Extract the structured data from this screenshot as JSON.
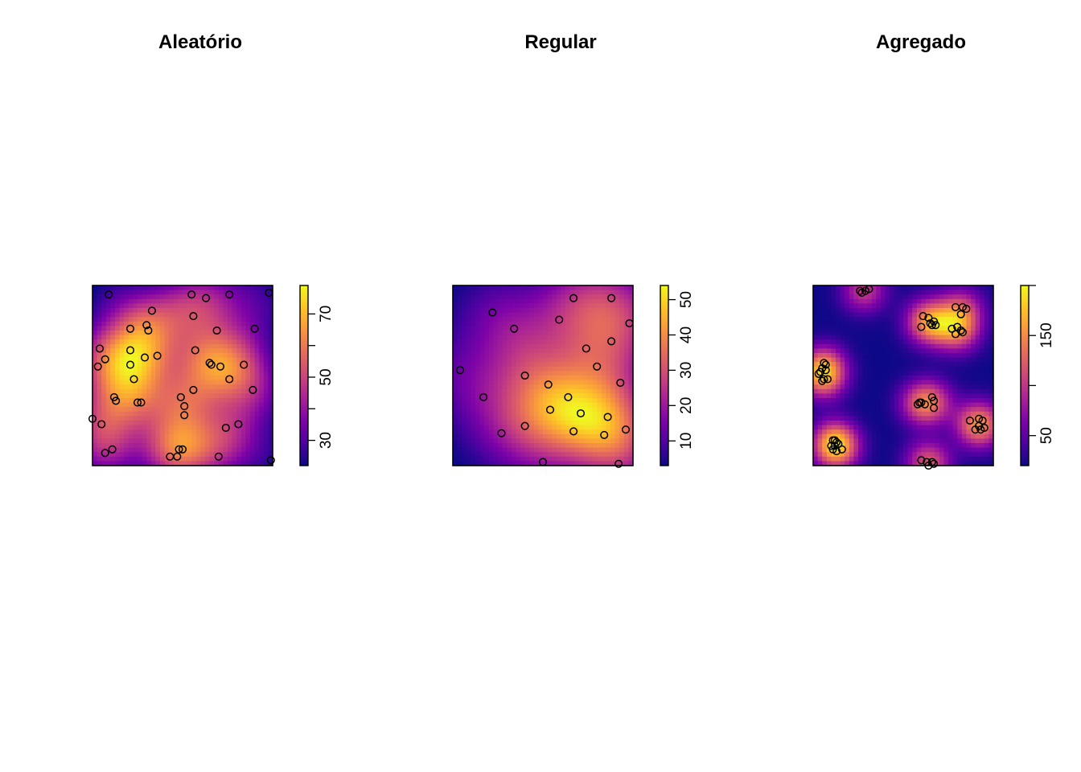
{
  "colors": {
    "background": "#ffffff",
    "ramp": [
      "#0d0887",
      "#4c02a1",
      "#7e03a8",
      "#a92395",
      "#cc4778",
      "#e56b5d",
      "#f89540",
      "#fdc328",
      "#f0f921"
    ],
    "points": "#000000"
  },
  "chart_data": [
    {
      "type": "heatmap",
      "title": "Aleatório",
      "legend": {
        "placement": "right",
        "range": [
          22,
          79
        ],
        "ticks": [
          "30",
          "50",
          "70"
        ],
        "tick_values": [
          30,
          50,
          70
        ],
        "minor_ticks": [
          40,
          60
        ]
      },
      "points": [
        [
          0.09,
          0.95
        ],
        [
          0.55,
          0.95
        ],
        [
          0.63,
          0.93
        ],
        [
          0.76,
          0.95
        ],
        [
          0.98,
          0.96
        ],
        [
          0.33,
          0.86
        ],
        [
          0.56,
          0.83
        ],
        [
          0.21,
          0.76
        ],
        [
          0.3,
          0.78
        ],
        [
          0.31,
          0.75
        ],
        [
          0.69,
          0.75
        ],
        [
          0.9,
          0.76
        ],
        [
          0.04,
          0.65
        ],
        [
          0.21,
          0.64
        ],
        [
          0.57,
          0.64
        ],
        [
          0.07,
          0.59
        ],
        [
          0.03,
          0.55
        ],
        [
          0.21,
          0.56
        ],
        [
          0.29,
          0.6
        ],
        [
          0.36,
          0.61
        ],
        [
          0.65,
          0.57
        ],
        [
          0.66,
          0.56
        ],
        [
          0.71,
          0.55
        ],
        [
          0.84,
          0.56
        ],
        [
          0.23,
          0.48
        ],
        [
          0.76,
          0.48
        ],
        [
          0.56,
          0.42
        ],
        [
          0.89,
          0.42
        ],
        [
          0.12,
          0.38
        ],
        [
          0.13,
          0.36
        ],
        [
          0.25,
          0.35
        ],
        [
          0.27,
          0.35
        ],
        [
          0.49,
          0.38
        ],
        [
          0.51,
          0.33
        ],
        [
          0.51,
          0.28
        ],
        [
          0.0,
          0.26
        ],
        [
          0.05,
          0.23
        ],
        [
          0.74,
          0.21
        ],
        [
          0.81,
          0.23
        ],
        [
          0.07,
          0.07
        ],
        [
          0.11,
          0.09
        ],
        [
          0.48,
          0.09
        ],
        [
          0.5,
          0.09
        ],
        [
          0.47,
          0.05
        ],
        [
          0.43,
          0.05
        ],
        [
          0.7,
          0.05
        ],
        [
          0.99,
          0.03
        ]
      ],
      "field": [
        [
          0.75,
          0.1
        ],
        [
          0.58,
          0.1
        ],
        [
          0.05,
          0.1
        ],
        [
          0.2,
          0.55
        ],
        [
          0.45,
          0.85
        ],
        [
          0.8,
          0.58
        ],
        [
          0.4,
          0.15
        ],
        [
          0.95,
          0.4
        ]
      ]
    },
    {
      "type": "heatmap",
      "title": "Regular",
      "legend": {
        "placement": "right",
        "range": [
          3,
          54
        ],
        "ticks": [
          "10",
          "20",
          "30",
          "40",
          "50"
        ],
        "tick_values": [
          10,
          20,
          30,
          40,
          50
        ],
        "minor_ticks": []
      },
      "points": [
        [
          0.22,
          0.85
        ],
        [
          0.67,
          0.93
        ],
        [
          0.88,
          0.93
        ],
        [
          0.34,
          0.76
        ],
        [
          0.59,
          0.81
        ],
        [
          0.98,
          0.79
        ],
        [
          0.74,
          0.65
        ],
        [
          0.88,
          0.69
        ],
        [
          0.04,
          0.53
        ],
        [
          0.4,
          0.5
        ],
        [
          0.53,
          0.45
        ],
        [
          0.8,
          0.55
        ],
        [
          0.93,
          0.46
        ],
        [
          0.17,
          0.38
        ],
        [
          0.64,
          0.38
        ],
        [
          0.54,
          0.31
        ],
        [
          0.71,
          0.29
        ],
        [
          0.86,
          0.27
        ],
        [
          0.4,
          0.22
        ],
        [
          0.27,
          0.18
        ],
        [
          0.67,
          0.19
        ],
        [
          0.84,
          0.17
        ],
        [
          0.96,
          0.2
        ],
        [
          0.5,
          0.02
        ],
        [
          0.92,
          0.01
        ]
      ],
      "field": [
        [
          0.95,
          0.1
        ],
        [
          0.82,
          0.24
        ],
        [
          0.7,
          0.3
        ],
        [
          0.75,
          0.93
        ],
        [
          0.5,
          0.3
        ],
        [
          0.4,
          0.6
        ],
        [
          0.95,
          0.85
        ]
      ]
    },
    {
      "type": "heatmap",
      "title": "Agregado",
      "legend": {
        "placement": "right",
        "range": [
          20,
          200
        ],
        "ticks": [
          "50",
          "150"
        ],
        "tick_values": [
          50,
          150
        ],
        "minor_ticks": [
          100,
          200
        ]
      },
      "points": [
        [
          0.26,
          0.97
        ],
        [
          0.27,
          0.96
        ],
        [
          0.29,
          0.97
        ],
        [
          0.31,
          0.98
        ],
        [
          0.79,
          0.88
        ],
        [
          0.83,
          0.88
        ],
        [
          0.85,
          0.87
        ],
        [
          0.82,
          0.84
        ],
        [
          0.61,
          0.83
        ],
        [
          0.64,
          0.82
        ],
        [
          0.65,
          0.79
        ],
        [
          0.67,
          0.8
        ],
        [
          0.68,
          0.78
        ],
        [
          0.66,
          0.78
        ],
        [
          0.6,
          0.77
        ],
        [
          0.77,
          0.76
        ],
        [
          0.8,
          0.77
        ],
        [
          0.82,
          0.75
        ],
        [
          0.79,
          0.73
        ],
        [
          0.83,
          0.74
        ],
        [
          0.06,
          0.57
        ],
        [
          0.07,
          0.56
        ],
        [
          0.05,
          0.54
        ],
        [
          0.07,
          0.53
        ],
        [
          0.04,
          0.52
        ],
        [
          0.03,
          0.51
        ],
        [
          0.06,
          0.48
        ],
        [
          0.08,
          0.48
        ],
        [
          0.05,
          0.47
        ],
        [
          0.66,
          0.38
        ],
        [
          0.59,
          0.35
        ],
        [
          0.6,
          0.35
        ],
        [
          0.62,
          0.34
        ],
        [
          0.67,
          0.36
        ],
        [
          0.58,
          0.34
        ],
        [
          0.67,
          0.32
        ],
        [
          0.87,
          0.25
        ],
        [
          0.92,
          0.26
        ],
        [
          0.94,
          0.25
        ],
        [
          0.92,
          0.22
        ],
        [
          0.95,
          0.21
        ],
        [
          0.9,
          0.2
        ],
        [
          0.93,
          0.2
        ],
        [
          0.11,
          0.14
        ],
        [
          0.12,
          0.14
        ],
        [
          0.13,
          0.13
        ],
        [
          0.1,
          0.11
        ],
        [
          0.12,
          0.11
        ],
        [
          0.14,
          0.12
        ],
        [
          0.11,
          0.09
        ],
        [
          0.13,
          0.08
        ],
        [
          0.16,
          0.09
        ],
        [
          0.6,
          0.03
        ],
        [
          0.63,
          0.02
        ],
        [
          0.66,
          0.02
        ],
        [
          0.67,
          0.01
        ],
        [
          0.64,
          0.0
        ]
      ],
      "field": []
    }
  ]
}
